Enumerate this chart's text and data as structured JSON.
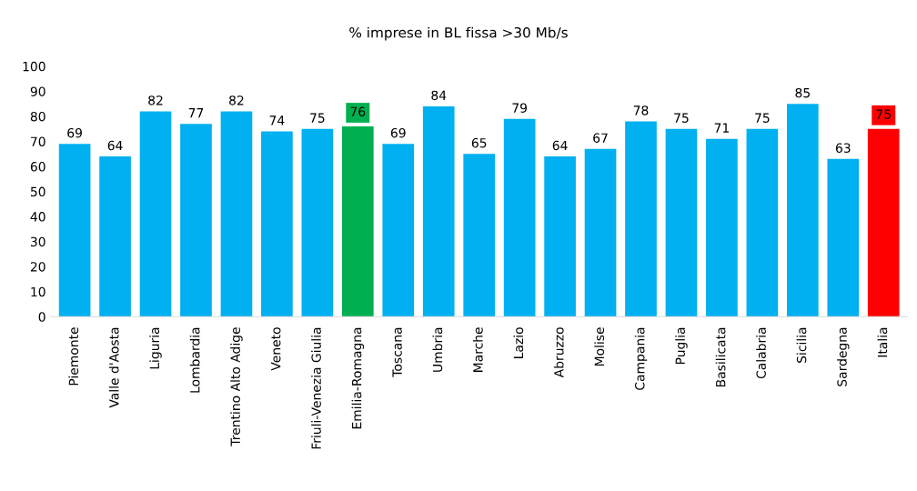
{
  "chart_data": {
    "type": "bar",
    "title": "% imprese in BL fissa >30 Mb/s",
    "categories": [
      "Piemonte",
      "Valle d'Aosta",
      "Liguria",
      "Lombardia",
      "Trentino Alto Adige",
      "Veneto",
      "Friuli-Venezia Giulia",
      "Emilia-Romagna",
      "Toscana",
      "Umbria",
      "Marche",
      "Lazio",
      "Abruzzo",
      "Molise",
      "Campania",
      "Puglia",
      "Basilicata",
      "Calabria",
      "Sicilia",
      "Sardegna",
      "Italia"
    ],
    "values": [
      69,
      64,
      82,
      77,
      82,
      74,
      75,
      76,
      69,
      84,
      65,
      79,
      64,
      67,
      78,
      75,
      71,
      75,
      85,
      63,
      75
    ],
    "colors": [
      "#00b0f0",
      "#00b0f0",
      "#00b0f0",
      "#00b0f0",
      "#00b0f0",
      "#00b0f0",
      "#00b0f0",
      "#00b050",
      "#00b0f0",
      "#00b0f0",
      "#00b0f0",
      "#00b0f0",
      "#00b0f0",
      "#00b0f0",
      "#00b0f0",
      "#00b0f0",
      "#00b0f0",
      "#00b0f0",
      "#00b0f0",
      "#00b0f0",
      "#ff0000"
    ],
    "ylim": [
      0,
      100
    ],
    "yticks": [
      0,
      10,
      20,
      30,
      40,
      50,
      60,
      70,
      80,
      90,
      100
    ],
    "data_labels": true,
    "grid": false,
    "legend": false
  }
}
